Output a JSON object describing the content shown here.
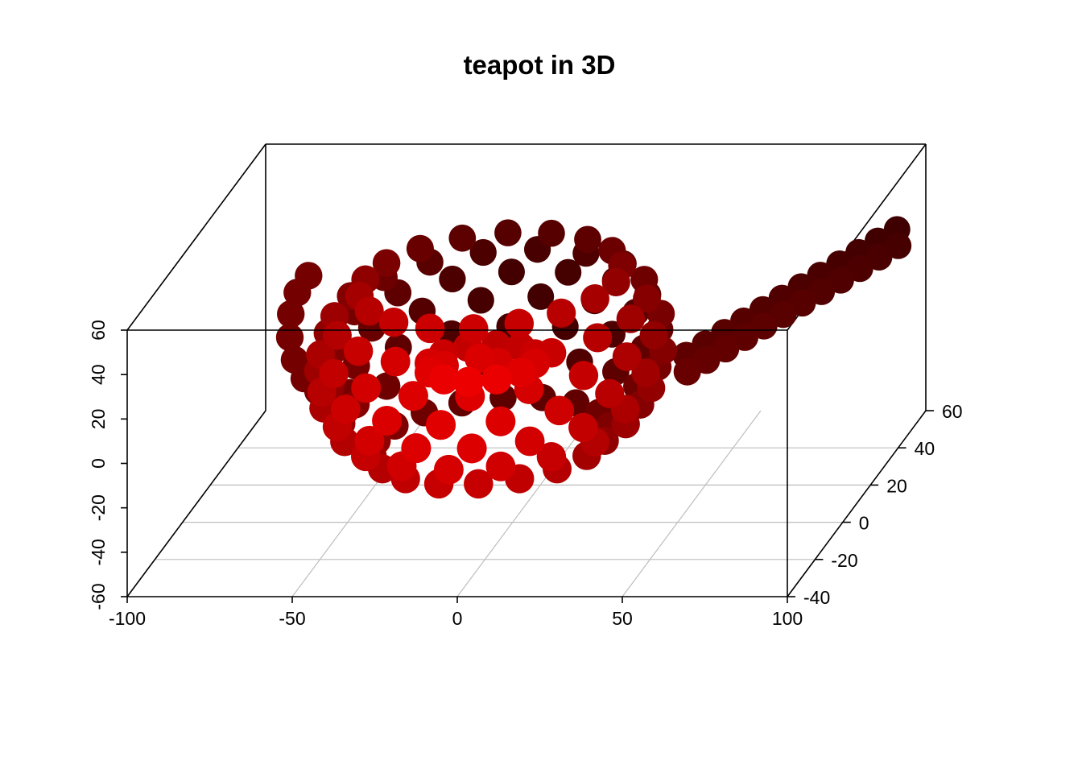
{
  "chart_data": {
    "type": "scatter",
    "title": "teapot in 3D",
    "xlabel": "",
    "ylabel": "",
    "zlabel": "",
    "xlim": [
      -100,
      100
    ],
    "ylim": [
      -40,
      60
    ],
    "zlim": [
      -60,
      60
    ],
    "x_ticks": [
      "-100",
      "-50",
      "0",
      "50",
      "100"
    ],
    "y_ticks": [
      "-40",
      "-20",
      "0",
      "20",
      "40",
      "60"
    ],
    "z_ticks": [
      "-60",
      "-40",
      "-20",
      "0",
      "20",
      "40",
      "60"
    ],
    "grid": true,
    "color_scale": {
      "near": "#ff0000",
      "far": "#1a0000",
      "encodes": "depth (y)"
    },
    "points_description_note": "",
    "series": [
      {
        "values": []
      }
    ]
  }
}
